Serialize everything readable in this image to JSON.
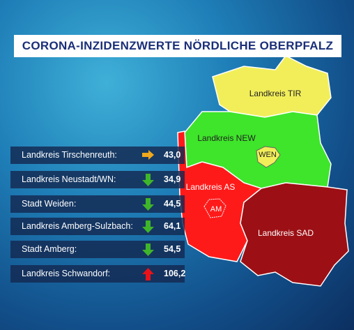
{
  "title": "CORONA-INZIDENZWERTE NÖRDLICHE OBERPFALZ",
  "map": {
    "regions": [
      "Landkreis TIR",
      "Landkreis NEW",
      "WEN",
      "Landkreis AS",
      "AM",
      "Landkreis SAD"
    ]
  },
  "list": [
    {
      "name": "Landkreis Tirschenreuth:",
      "value": "43,0"
    },
    {
      "name": "Landkreis Neustadt/WN:",
      "value": "34,9"
    },
    {
      "name": "Stadt Weiden:",
      "value": "44,5"
    },
    {
      "name": "Landkreis Amberg-Sulzbach:",
      "value": "64,1"
    },
    {
      "name": "Stadt Amberg:",
      "value": "54,5"
    },
    {
      "name": "Landkreis Schwandorf:",
      "value": "106,2"
    }
  ]
}
